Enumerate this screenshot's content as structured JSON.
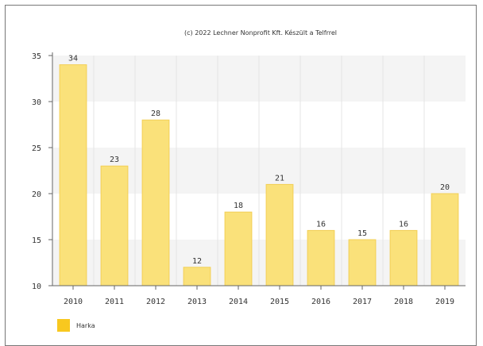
{
  "credit": "(c) 2022 Lechner Nonprofit Kft. Készült a Telfrrel",
  "colors": {
    "bar": "#fae17a",
    "bar_stroke": "#f2cf55",
    "band": "#f4f4f4",
    "legend": "#f8c81f"
  },
  "chart_data": {
    "type": "bar",
    "categories": [
      "2010",
      "2011",
      "2012",
      "2013",
      "2014",
      "2015",
      "2016",
      "2017",
      "2018",
      "2019"
    ],
    "series": [
      {
        "name": "Harka",
        "values": [
          34,
          23,
          28,
          12,
          18,
          21,
          16,
          15,
          16,
          20
        ]
      }
    ],
    "ylim": [
      10,
      35
    ],
    "yticks": [
      "10",
      "15",
      "20",
      "25",
      "30",
      "35"
    ],
    "grid": true,
    "legend": "bottom-left"
  }
}
